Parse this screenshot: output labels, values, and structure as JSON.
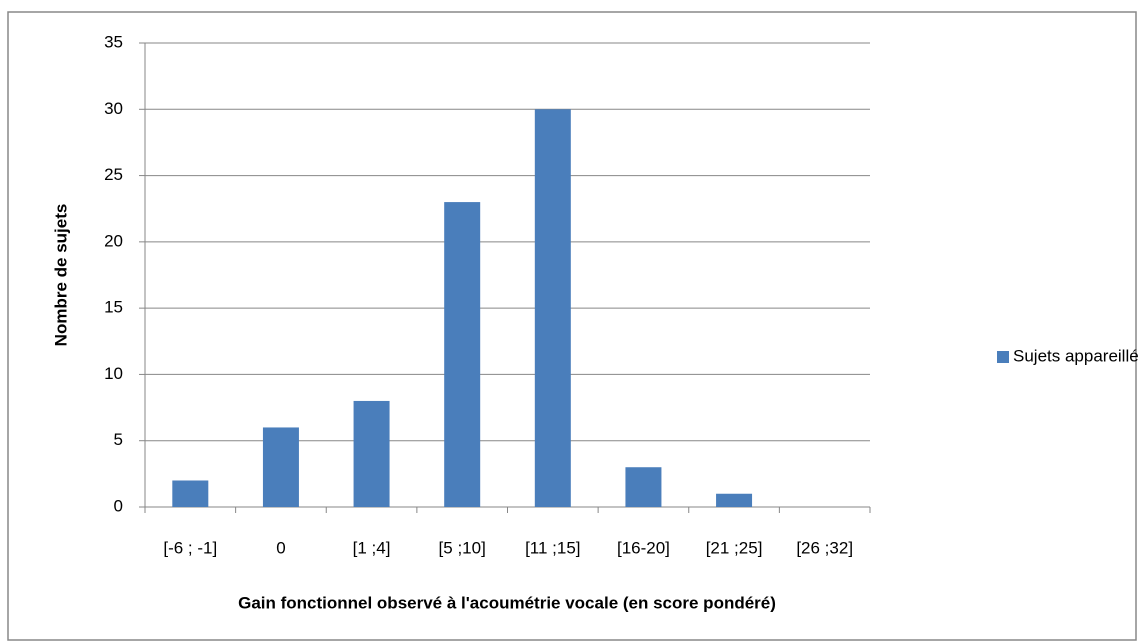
{
  "chart_data": {
    "type": "bar",
    "x_label": "Gain fonctionnel observé à l'acoumétrie vocale (en score pondéré)",
    "y_label": "Nombre de sujets",
    "categories": [
      "[-6 ; -1]",
      "0",
      "[1 ;4]",
      "[5 ;10]",
      "[11 ;15]",
      "[16-20]",
      "[21 ;25]",
      "[26 ;32]"
    ],
    "series": [
      {
        "name": "Sujets appareillés",
        "color": "#4a7ebb",
        "values": [
          2,
          6,
          8,
          23,
          30,
          3,
          1,
          0
        ]
      }
    ],
    "ylim": [
      0,
      35
    ],
    "yticks": [
      0,
      5,
      10,
      15,
      20,
      25,
      30,
      35
    ],
    "grid": true,
    "legend": "right"
  }
}
